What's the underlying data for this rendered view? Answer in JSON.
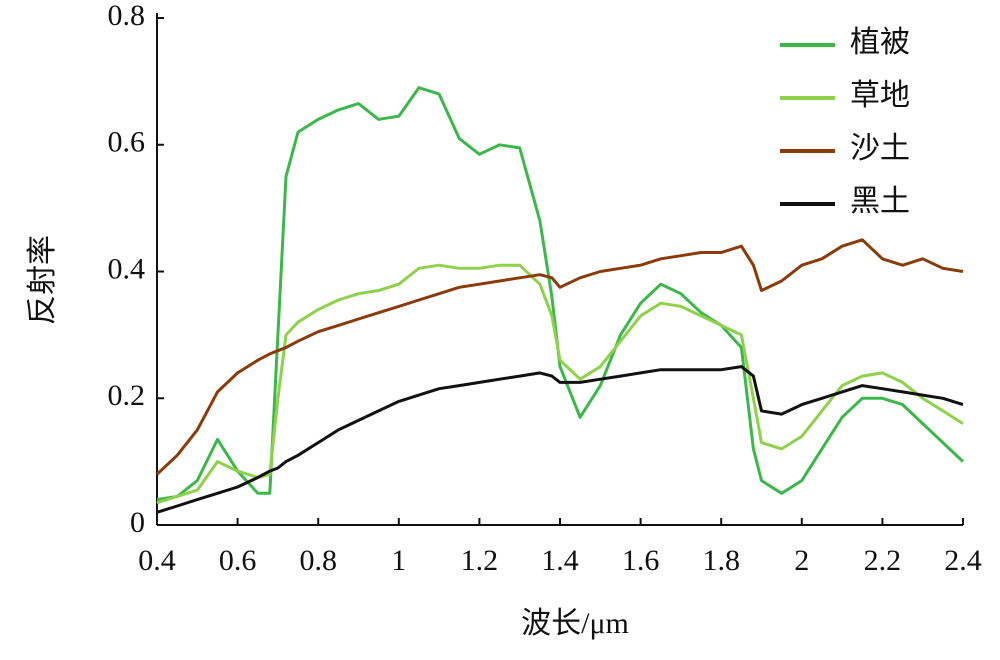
{
  "chart_data": {
    "type": "line",
    "xlabel": "波长/μm",
    "ylabel": "反射率",
    "xlim": [
      0.4,
      2.4
    ],
    "xticks": [
      0.4,
      0.6,
      0.8,
      1,
      1.2,
      1.4,
      1.6,
      1.8,
      2,
      2.2,
      2.4
    ],
    "ylim": [
      0,
      0.8
    ],
    "yticks": [
      0,
      0.2,
      0.4,
      0.6,
      0.8
    ],
    "legend": "upper right",
    "x": [
      0.4,
      0.45,
      0.5,
      0.55,
      0.6,
      0.65,
      0.68,
      0.7,
      0.72,
      0.75,
      0.8,
      0.85,
      0.9,
      0.95,
      1.0,
      1.05,
      1.1,
      1.15,
      1.2,
      1.25,
      1.3,
      1.35,
      1.38,
      1.4,
      1.45,
      1.5,
      1.55,
      1.6,
      1.65,
      1.7,
      1.75,
      1.8,
      1.85,
      1.88,
      1.9,
      1.95,
      2.0,
      2.05,
      2.1,
      2.15,
      2.2,
      2.25,
      2.3,
      2.35,
      2.4
    ],
    "series": [
      {
        "name": "植被",
        "color": "#3cb84a",
        "values": [
          0.04,
          0.045,
          0.07,
          0.135,
          0.085,
          0.05,
          0.05,
          0.3,
          0.55,
          0.62,
          0.64,
          0.655,
          0.665,
          0.64,
          0.645,
          0.69,
          0.68,
          0.61,
          0.585,
          0.6,
          0.595,
          0.48,
          0.36,
          0.25,
          0.17,
          0.22,
          0.3,
          0.35,
          0.38,
          0.365,
          0.335,
          0.315,
          0.28,
          0.12,
          0.07,
          0.05,
          0.07,
          0.12,
          0.17,
          0.2,
          0.2,
          0.19,
          0.16,
          0.13,
          0.1
        ]
      },
      {
        "name": "草地",
        "color": "#8ed14a",
        "values": [
          0.035,
          0.045,
          0.055,
          0.1,
          0.085,
          0.075,
          0.08,
          0.2,
          0.3,
          0.32,
          0.34,
          0.355,
          0.365,
          0.37,
          0.38,
          0.405,
          0.41,
          0.405,
          0.405,
          0.41,
          0.41,
          0.38,
          0.33,
          0.26,
          0.23,
          0.25,
          0.29,
          0.33,
          0.35,
          0.345,
          0.33,
          0.315,
          0.3,
          0.2,
          0.13,
          0.12,
          0.14,
          0.18,
          0.22,
          0.235,
          0.24,
          0.225,
          0.2,
          0.18,
          0.16
        ]
      },
      {
        "name": "沙土",
        "color": "#8b3a0a",
        "values": [
          0.08,
          0.11,
          0.15,
          0.21,
          0.24,
          0.26,
          0.27,
          0.275,
          0.28,
          0.29,
          0.305,
          0.315,
          0.325,
          0.335,
          0.345,
          0.355,
          0.365,
          0.375,
          0.38,
          0.385,
          0.39,
          0.395,
          0.39,
          0.375,
          0.39,
          0.4,
          0.405,
          0.41,
          0.42,
          0.425,
          0.43,
          0.43,
          0.44,
          0.41,
          0.37,
          0.385,
          0.41,
          0.42,
          0.44,
          0.45,
          0.42,
          0.41,
          0.42,
          0.405,
          0.4
        ]
      },
      {
        "name": "黑土",
        "color": "#111111",
        "values": [
          0.02,
          0.03,
          0.04,
          0.05,
          0.06,
          0.075,
          0.085,
          0.09,
          0.1,
          0.11,
          0.13,
          0.15,
          0.165,
          0.18,
          0.195,
          0.205,
          0.215,
          0.22,
          0.225,
          0.23,
          0.235,
          0.24,
          0.235,
          0.225,
          0.225,
          0.23,
          0.235,
          0.24,
          0.245,
          0.245,
          0.245,
          0.245,
          0.25,
          0.235,
          0.18,
          0.175,
          0.19,
          0.2,
          0.21,
          0.22,
          0.215,
          0.21,
          0.205,
          0.2,
          0.19
        ]
      }
    ]
  }
}
